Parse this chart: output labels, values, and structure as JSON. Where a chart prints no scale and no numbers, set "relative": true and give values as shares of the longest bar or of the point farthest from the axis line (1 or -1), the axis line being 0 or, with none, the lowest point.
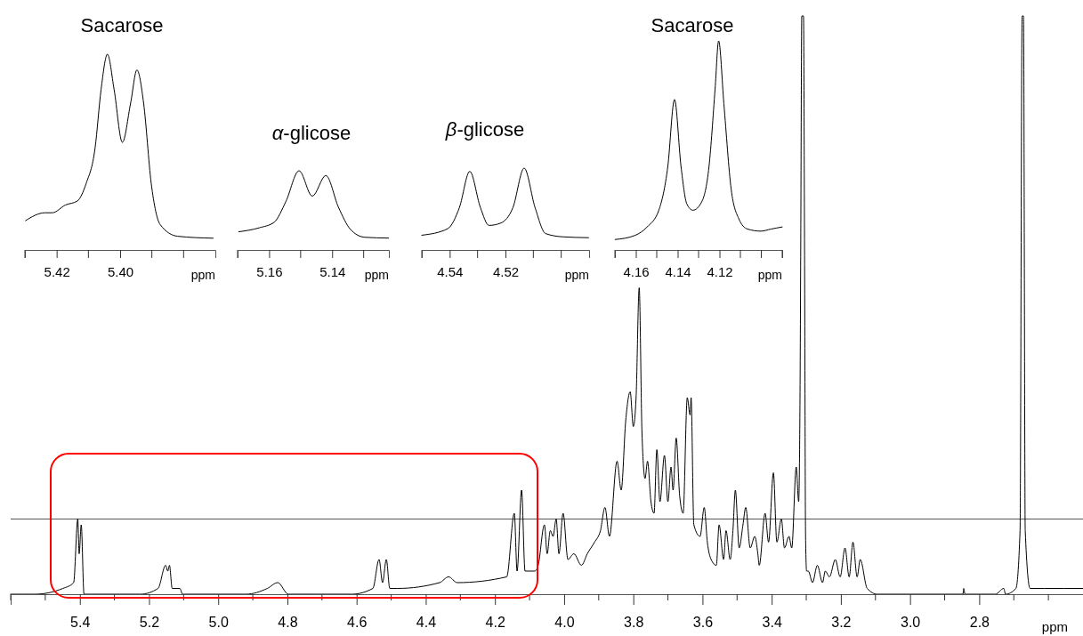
{
  "chart_data": [
    {
      "type": "line",
      "title": "Sacarose",
      "relative": true,
      "xlabel": "ppm",
      "xlim": [
        5.43,
        5.37
      ],
      "xticks": [
        {
          "value": 5.43,
          "label": null
        },
        5.42,
        {
          "value": 5.41,
          "label": null
        },
        {
          "value": 5.4,
          "label": "5.40"
        },
        {
          "value": 5.39,
          "label": null
        },
        {
          "value": 5.38,
          "label": null
        }
      ],
      "series": [
        {
          "color": "#000000",
          "x": [
            5.4298,
            5.4237,
            5.4214,
            5.4172,
            5.4135,
            5.4107,
            5.4079,
            5.406,
            5.404,
            5.4019,
            5.3993,
            5.3967,
            5.3947,
            5.3926,
            5.3902,
            5.3874,
            5.3819,
            5.3707
          ],
          "values": [
            0.15,
            0.19,
            0.19,
            0.23,
            0.25,
            0.34,
            0.52,
            0.82,
            1,
            0.82,
            0.55,
            0.75,
            0.92,
            0.75,
            0.34,
            0.13,
            0.07,
            0.06
          ]
        }
      ]
    },
    {
      "type": "line",
      "title": "α-glicose",
      "relative": true,
      "xlabel": "ppm",
      "xlim": [
        5.17,
        5.122
      ],
      "xticks": [
        {
          "value": 5.17,
          "label": null
        },
        5.16,
        {
          "value": 5.15,
          "label": null
        },
        5.14,
        {
          "value": 5.13,
          "label": null
        }
      ],
      "series": [
        {
          "color": "#000000",
          "x": [
            5.1696,
            5.1631,
            5.1584,
            5.1547,
            5.1505,
            5.1463,
            5.142,
            5.138,
            5.1342,
            5.1296,
            5.1221
          ],
          "values": [
            0.23,
            0.28,
            0.35,
            0.61,
            1,
            0.68,
            0.94,
            0.54,
            0.26,
            0.16,
            0.15
          ]
        }
      ]
    },
    {
      "type": "line",
      "title": "β-glicose",
      "relative": true,
      "xlabel": "ppm",
      "xlim": [
        4.55,
        4.49
      ],
      "xticks": [
        {
          "value": 4.55,
          "label": null
        },
        4.54,
        {
          "value": 4.53,
          "label": null
        },
        4.52,
        {
          "value": 4.51,
          "label": null
        },
        {
          "value": 4.5,
          "label": null
        }
      ],
      "series": [
        {
          "color": "#000000",
          "x": [
            4.55,
            4.5407,
            4.5365,
            4.5328,
            4.529,
            4.5259,
            4.5216,
            4.5173,
            4.5133,
            4.5094,
            4.5056,
            4.4993,
            4.4902
          ],
          "values": [
            0.18,
            0.26,
            0.52,
            0.96,
            0.52,
            0.3,
            0.33,
            0.52,
            1,
            0.52,
            0.2,
            0.16,
            0.15
          ]
        }
      ]
    },
    {
      "type": "line",
      "title": "Sacarose",
      "relative": true,
      "xlabel": "ppm",
      "xlim": [
        4.17,
        4.09
      ],
      "xticks": [
        {
          "value": 4.17,
          "label": null
        },
        4.16,
        {
          "value": 4.15,
          "label": null
        },
        4.14,
        {
          "value": 4.13,
          "label": null
        },
        4.12,
        {
          "value": 4.11,
          "label": null
        },
        {
          "value": 4.1,
          "label": null
        },
        {
          "value": 4.09,
          "label": null
        }
      ],
      "series": [
        {
          "color": "#000000",
          "x": [
            4.1699,
            4.1603,
            4.1546,
            4.149,
            4.1447,
            4.1415,
            4.1384,
            4.1356,
            4.1327,
            4.1285,
            4.125,
            4.1221,
            4.1204,
            4.1179,
            4.1144,
            4.1108,
            4.1066,
            4.1002,
            4.0953,
            4.09
          ],
          "values": [
            0.05,
            0.07,
            0.11,
            0.19,
            0.4,
            0.72,
            0.4,
            0.22,
            0.19,
            0.23,
            0.4,
            0.77,
            1,
            0.7,
            0.29,
            0.15,
            0.1,
            0.09,
            0.1,
            0.11
          ]
        }
      ]
    },
    {
      "type": "line",
      "relative": true,
      "xlabel": "ppm",
      "ref_lines": [
        {
          "axis": "y",
          "value": 0.13,
          "color": "#555555"
        }
      ],
      "xlim": [
        5.6,
        2.5
      ],
      "xticks": [
        {
          "value": 5.6,
          "label": null
        },
        {
          "value": 5.5,
          "label": null
        },
        5.4,
        {
          "value": 5.3,
          "label": null
        },
        5.2,
        {
          "value": 5.1,
          "label": null
        },
        {
          "value": 5,
          "label": "5.0"
        },
        {
          "value": 4.9,
          "label": null
        },
        4.8,
        {
          "value": 4.7,
          "label": null
        },
        4.6,
        {
          "value": 4.5,
          "label": null
        },
        4.4,
        {
          "value": 4.3,
          "label": null
        },
        4.2,
        {
          "value": 4.1,
          "label": null
        },
        {
          "value": 4,
          "label": "4.0"
        },
        {
          "value": 3.9,
          "label": null
        },
        3.8,
        {
          "value": 3.7,
          "label": null
        },
        3.6,
        {
          "value": 3.5,
          "label": null
        },
        3.4,
        {
          "value": 3.3,
          "label": null
        },
        3.2,
        {
          "value": 3.1,
          "label": null
        },
        {
          "value": 3,
          "label": "3.0"
        },
        {
          "value": 2.9,
          "label": null
        },
        2.8,
        {
          "value": 2.7,
          "label": null
        },
        {
          "value": 2.6,
          "label": null
        }
      ],
      "series": [
        {
          "color": "#000000",
          "x": [
            5.6,
            5.53,
            5.449,
            5.418,
            5.406,
            5.402,
            5.396,
            5.388,
            5.367,
            5.225,
            5.174,
            5.152,
            5.146,
            5.141,
            5.133,
            5.111,
            5.103,
            4.92,
            4.858,
            4.828,
            4.797,
            4.716,
            4.614,
            4.553,
            4.535,
            4.525,
            4.514,
            4.504,
            4.482,
            4.36,
            4.334,
            4.309,
            4.166,
            4.144,
            4.136,
            4.123,
            4.113,
            4.085,
            4.075,
            4.057,
            4.049,
            4.04,
            4.032,
            4.023,
            4.015,
            4.003,
            3.989,
            3.972,
            3.95,
            3.933,
            3.912,
            3.895,
            3.882,
            3.869,
            3.847,
            3.835,
            3.822,
            3.809,
            3.8,
            3.792,
            3.783,
            3.775,
            3.766,
            3.759,
            3.749,
            3.74,
            3.732,
            3.723,
            3.71,
            3.7,
            3.691,
            3.685,
            3.676,
            3.666,
            3.656,
            3.644,
            3.636,
            3.633,
            3.625,
            3.607,
            3.595,
            3.586,
            3.575,
            3.56,
            3.552,
            3.539,
            3.532,
            3.52,
            3.512,
            3.505,
            3.494,
            3.483,
            3.475,
            3.462,
            3.449,
            3.44,
            3.436,
            3.419,
            3.409,
            3.395,
            3.385,
            3.372,
            3.363,
            3.35,
            3.342,
            3.329,
            3.322,
            3.318,
            3.316,
            3.313,
            3.308,
            3.305,
            3.302,
            3.299,
            3.294,
            3.282,
            3.268,
            3.253,
            3.245,
            3.233,
            3.216,
            3.202,
            3.188,
            3.176,
            3.165,
            3.153,
            3.144,
            3.124,
            3.094,
            2.847,
            2.845,
            2.841,
            2.753,
            2.729,
            2.724,
            2.694,
            2.682,
            2.676,
            2.672,
            2.667,
            2.653,
            2.612,
            2.5
          ],
          "values": [
            0,
            0,
            0.01,
            0.02,
            0.13,
            0.07,
            0.12,
            0,
            0,
            0,
            0.01,
            0.05,
            0.04,
            0.05,
            0.01,
            0.01,
            0,
            0,
            0.01,
            0.02,
            0,
            0,
            0,
            0.01,
            0.06,
            0.02,
            0.06,
            0.01,
            0.01,
            0.02,
            0.03,
            0.02,
            0.03,
            0.14,
            0.04,
            0.18,
            0.04,
            0.04,
            0.05,
            0.12,
            0.07,
            0.11,
            0.1,
            0.13,
            0.07,
            0.14,
            0.06,
            0.07,
            0.05,
            0.07,
            0.09,
            0.11,
            0.15,
            0.1,
            0.23,
            0.18,
            0.3,
            0.35,
            0.29,
            0.34,
            0.53,
            0.28,
            0.2,
            0.23,
            0.16,
            0.14,
            0.25,
            0.16,
            0.24,
            0.16,
            0.22,
            0.18,
            0.27,
            0.17,
            0.14,
            0.34,
            0.31,
            0.34,
            0.12,
            0.1,
            0.15,
            0.09,
            0.06,
            0.05,
            0.12,
            0.06,
            0.11,
            0.06,
            0.11,
            0.18,
            0.08,
            0.12,
            0.15,
            0.08,
            0.1,
            0.07,
            0.05,
            0.14,
            0.09,
            0.21,
            0.09,
            0.13,
            0.08,
            0.1,
            0.08,
            0.22,
            0.16,
            0.35,
            0.6,
            1,
            1,
            0.6,
            0.1,
            0.04,
            0.04,
            0.02,
            0.05,
            0.02,
            0.04,
            0.03,
            0.06,
            0.03,
            0.08,
            0.03,
            0.09,
            0.03,
            0.06,
            0.01,
            0,
            0,
            0.01,
            0,
            0,
            0.01,
            0,
            0.01,
            0.11,
            1,
            1,
            0.11,
            0.01,
            0.01,
            0.01
          ]
        }
      ]
    }
  ]
}
